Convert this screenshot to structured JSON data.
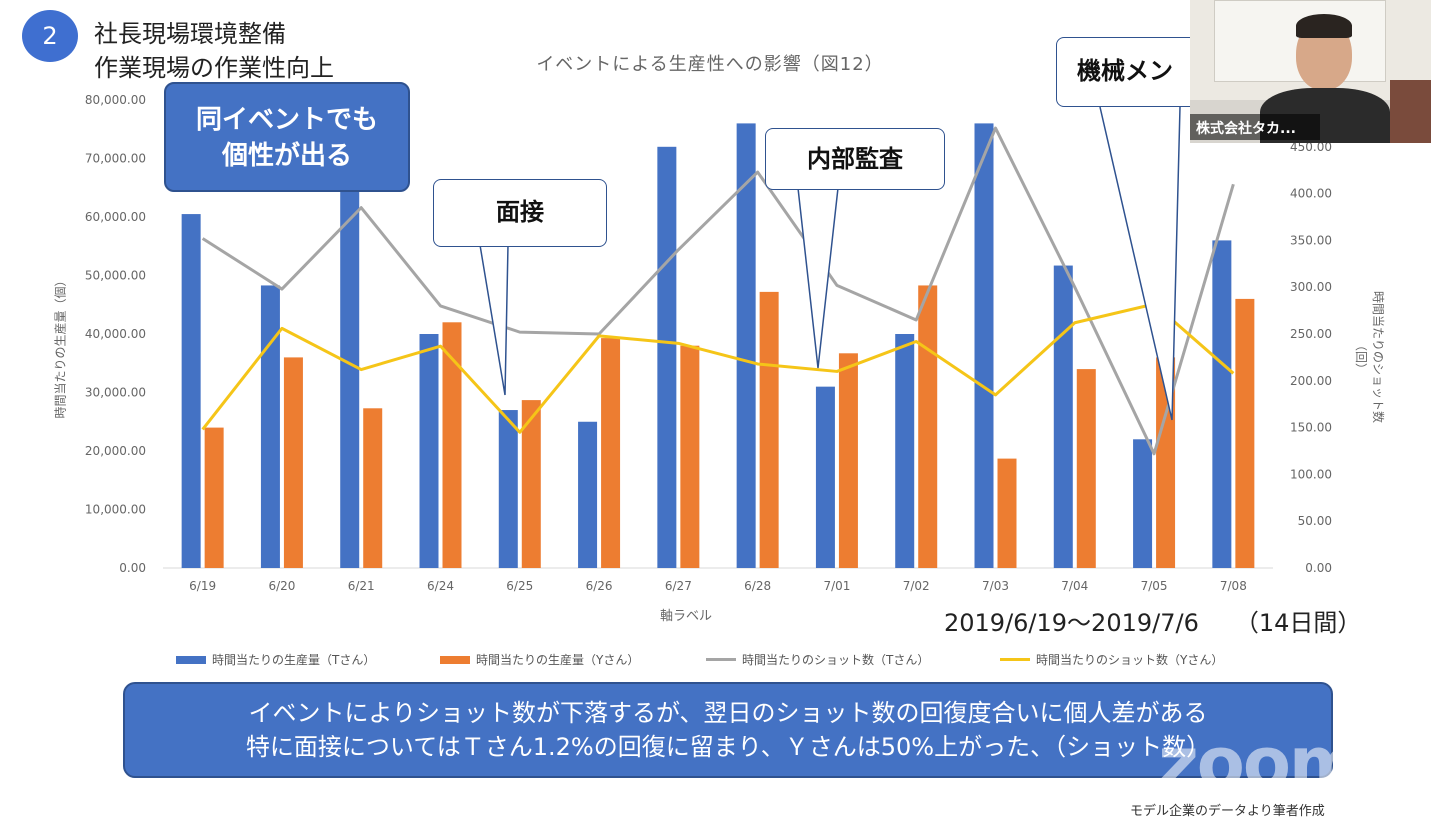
{
  "header": {
    "number": "2",
    "line1": "社長現場環境整備",
    "line2": "作業現場の作業性向上"
  },
  "chart_data": {
    "type": "bar+line",
    "title": "イベントによる生産性への影響（図12）",
    "categories": [
      "6/19",
      "6/20",
      "6/21",
      "6/24",
      "6/25",
      "6/26",
      "6/27",
      "6/28",
      "7/01",
      "7/02",
      "7/03",
      "7/04",
      "7/05",
      "7/08"
    ],
    "xlabel": "軸ラベル",
    "ylabel_left": "時間当たりの生産量（個）",
    "ylabel_right": "時間当たりのショット数（回）",
    "ylim_left": [
      0,
      80000
    ],
    "ylim_right": [
      0,
      500
    ],
    "left_ticks": [
      "0.00",
      "10,000.00",
      "20,000.00",
      "30,000.00",
      "40,000.00",
      "50,000.00",
      "60,000.00",
      "70,000.00",
      "80,000.00"
    ],
    "right_ticks": [
      "0.00",
      "50.00",
      "100.00",
      "150.00",
      "200.00",
      "250.00",
      "300.00",
      "350.00",
      "400.00",
      "450.00"
    ],
    "series": [
      {
        "name": "時間当たりの生産量（Tさん）",
        "kind": "bar",
        "axis": "left",
        "color": "#4472c4",
        "values": [
          60500,
          48300,
          66000,
          40000,
          27000,
          25000,
          72000,
          76000,
          31000,
          40000,
          76000,
          51700,
          22000,
          56000
        ]
      },
      {
        "name": "時間当たりの生産量（Yさん）",
        "kind": "bar",
        "axis": "left",
        "color": "#ed7d31",
        "values": [
          24000,
          36000,
          27300,
          42000,
          28700,
          39300,
          38000,
          47200,
          36700,
          48300,
          18700,
          34000,
          36000,
          46000
        ]
      },
      {
        "name": "時間当たりのショット数（Tさん）",
        "kind": "line",
        "axis": "right",
        "color": "#a5a5a5",
        "values": [
          352,
          298,
          385,
          280,
          252,
          250,
          340,
          423,
          302,
          265,
          470,
          300,
          122,
          410
        ]
      },
      {
        "name": "時間当たりのショット数（Yさん）",
        "kind": "line",
        "axis": "right",
        "color": "#f5c518",
        "values": [
          148,
          256,
          212,
          237,
          145,
          248,
          240,
          218,
          210,
          242,
          185,
          262,
          282,
          208
        ]
      }
    ]
  },
  "callouts": {
    "individuality": "同イベントでも\n個性が出る",
    "interview": "面接",
    "audit": "内部監査",
    "maintenance": "機械メン"
  },
  "date_range": "2019/6/19～2019/7/6　　（14日間）",
  "summary": {
    "line1": "イベントによりショット数が下落するが、翌日のショット数の回復度合いに個人差がある",
    "line2": "特に面接についてはＴさん1.2%の回復に留まり、Ｙさんは50%上がった、（ショット数）"
  },
  "source": "モデル企業のデータより筆者作成",
  "video": {
    "name": "株式会社タカ..."
  },
  "watermark": "zoom"
}
